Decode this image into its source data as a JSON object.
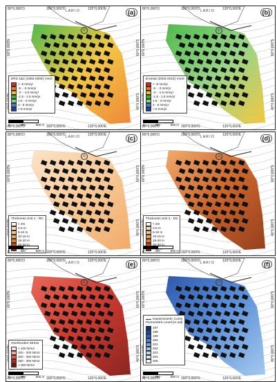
{
  "figure": {
    "coords": {
      "top_left": "80°0,000'O",
      "top_mid": "160°0,000'O",
      "top_right": "120°0,000'E",
      "bottom_left": "80°0,000'O",
      "bottom_mid": "160°0,000'O",
      "bottom_right": "120°0,000'E",
      "left_a": "60°0,000'N",
      "left_b": "40°0,000'N",
      "right_a": "60°0,000'S",
      "right_b": "40°0,000'S"
    },
    "lake_label": "L A R I O",
    "panels": [
      {
        "id": "a",
        "label": "(a)",
        "legend_title": "ERS 1&2 (1993-2000) Vvert",
        "legend": [
          {
            "text": "< -5 mm/yr",
            "color": "#d62a1c"
          },
          {
            "text": "-5 - -3 mm/yr",
            "color": "#ee7a24"
          },
          {
            "text": "-3 - -1.5 mm/yr",
            "color": "#f2c12f"
          },
          {
            "text": "-1.5 - 1.5 mm/yr",
            "color": "#3fb23a"
          },
          {
            "text": "1.5 - 3 mm/yr",
            "color": "#8bd17a"
          },
          {
            "text": "3 - 5 mm/yr",
            "color": "#3f7fd0"
          },
          {
            "text": "> 5 mm/yr",
            "color": "#1f3e9e"
          }
        ]
      },
      {
        "id": "b",
        "label": "(b)",
        "legend_title": "Envisat (2003-2010) Vvert",
        "legend": [
          {
            "text": "< -5 mm/yr",
            "color": "#d62a1c"
          },
          {
            "text": "-5 - -3 mm/yr",
            "color": "#ee7a24"
          },
          {
            "text": "-3 - -1.5 mm/yr",
            "color": "#f2c12f"
          },
          {
            "text": "-1.5 - 1.5 mm/yr",
            "color": "#3fb23a"
          },
          {
            "text": "1.5 - 3 mm/yr",
            "color": "#8bd17a"
          },
          {
            "text": "3 - 5 mm/yr",
            "color": "#3f7fd0"
          },
          {
            "text": "> 5 mm/yr",
            "color": "#1f3e9e"
          }
        ]
      },
      {
        "id": "c",
        "label": "(c)",
        "legend_title": "Thickness Unit 1 - RH",
        "legend": [
          {
            "text": "< 2m",
            "color": "#fdf3e4"
          },
          {
            "text": "2-5 m",
            "color": "#fbe0bf"
          },
          {
            "text": "5-10 m",
            "color": "#f7c38b"
          },
          {
            "text": "10-15 m",
            "color": "#f0a25a"
          },
          {
            "text": "15-20 m",
            "color": "#e27d2f"
          },
          {
            "text": "20-30 m",
            "color": "#c45313"
          },
          {
            "text": "> 30 m",
            "color": "#8a2b06"
          }
        ]
      },
      {
        "id": "d",
        "label": "(d)",
        "legend_title": "Thickness Unit 3 - DS",
        "legend": [
          {
            "text": "< 2m",
            "color": "#fdf3e4"
          },
          {
            "text": "2-5 m",
            "color": "#fbe0bf"
          },
          {
            "text": "5-10 m",
            "color": "#f7c38b"
          },
          {
            "text": "10-15 m",
            "color": "#f0a25a"
          },
          {
            "text": "15-20 m",
            "color": "#e27d2f"
          },
          {
            "text": "20-30 m",
            "color": "#c45313"
          },
          {
            "text": "> 30 m",
            "color": "#8a2b06"
          }
        ]
      },
      {
        "id": "e",
        "label": "(e)",
        "legend_title": "Overburden Stress",
        "legend": [
          {
            "text": "< 100 N/m2",
            "color": "#fde7e2"
          },
          {
            "text": "100 - 200 N/m2",
            "color": "#f6a99a"
          },
          {
            "text": "200 - 250 N/m2",
            "color": "#e55844"
          },
          {
            "text": "250 - 300 N/m2",
            "color": "#c42418"
          },
          {
            "text": "> 300 N/m2",
            "color": "#7d0e08"
          }
        ]
      },
      {
        "id": "f",
        "label": "(f)",
        "legend_title": "Piezometric Level [m asl]",
        "legend_line": "Isopiezometric Curve",
        "legend": [
          {
            "text": "197",
            "color": "#0b2f7a"
          },
          {
            "text": "198",
            "color": "#1747a3"
          },
          {
            "text": "199",
            "color": "#2a63c2"
          },
          {
            "text": "200",
            "color": "#4c86d6"
          },
          {
            "text": "201",
            "color": "#74a7e2"
          },
          {
            "text": "202",
            "color": "#9cc4ec"
          },
          {
            "text": "203",
            "color": "#bdd8f2"
          },
          {
            "text": "204",
            "color": "#d8e8f7"
          },
          {
            "text": "205",
            "color": "#eef5fc"
          }
        ]
      }
    ],
    "scale": {
      "zero": "0",
      "mid": "250",
      "end": "500 m"
    },
    "north_symbol": "①"
  }
}
